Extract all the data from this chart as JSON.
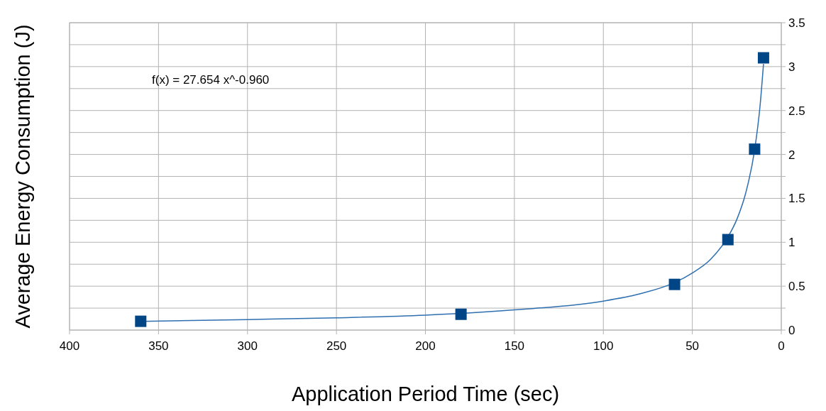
{
  "chart_data": {
    "type": "scatter",
    "xlabel": "Application Period Time (sec)",
    "ylabel": "Average Energy Consumption (J)",
    "annotations": [
      "f(x) = 27.654 x^-0.960"
    ],
    "xlim": [
      400,
      0
    ],
    "xticks": [
      400,
      350,
      300,
      250,
      200,
      150,
      100,
      50,
      0
    ],
    "ylim": [
      0,
      3.5
    ],
    "yticks": [
      0,
      {
        "value": 0.25,
        "label": null
      },
      0.5,
      {
        "value": 0.75,
        "label": null
      },
      1,
      {
        "value": 1.25,
        "label": null
      },
      1.5,
      {
        "value": 1.75,
        "label": null
      },
      2,
      {
        "value": 2.25,
        "label": null
      },
      2.5,
      {
        "value": 2.75,
        "label": null
      },
      3,
      {
        "value": 3.25,
        "label": null
      },
      3.5
    ],
    "grid": true,
    "marker": "square",
    "series": [
      {
        "type": "line",
        "color": "#2e6fb0",
        "marker": "none",
        "x": [
          10,
          12,
          15,
          20,
          25,
          30,
          40,
          50,
          60,
          80,
          100,
          150,
          200,
          250,
          300,
          360
        ],
        "values": [
          3.03,
          2.54,
          2.05,
          1.56,
          1.26,
          1.06,
          0.8,
          0.65,
          0.54,
          0.41,
          0.33,
          0.23,
          0.17,
          0.14,
          0.12,
          0.1
        ]
      },
      {
        "color": "#004586",
        "x": [
          360,
          180,
          60,
          30,
          15,
          10
        ],
        "values": [
          0.1,
          0.18,
          0.52,
          1.03,
          2.06,
          3.1
        ]
      }
    ]
  }
}
